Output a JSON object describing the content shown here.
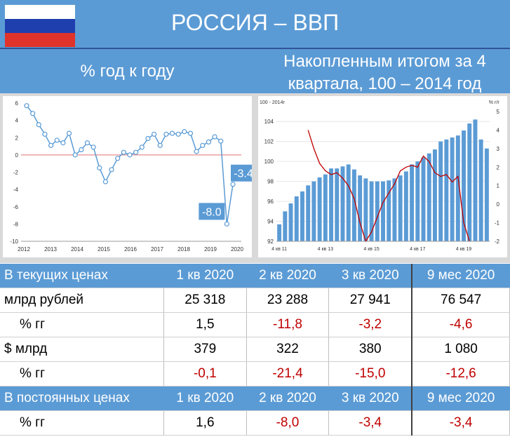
{
  "header": {
    "title": "РОССИЯ – ВВП",
    "subtitle_left": "% год к году",
    "subtitle_right_line1": "Накопленным итогом за 4",
    "subtitle_right_line2": "квартала, 100 – 2014 год"
  },
  "colors": {
    "accent": "#5b9bd5",
    "line": "#5b9bd5",
    "negative": "#c00000",
    "bar": "#5b9bd5",
    "line2": "#c00000"
  },
  "chart_data": [
    {
      "type": "line",
      "x_ticks": [
        "2012",
        "2013",
        "2014",
        "2015",
        "2016",
        "2017",
        "2018",
        "2019",
        "2020"
      ],
      "y_ticks": [
        "6",
        "4",
        "2",
        "0",
        "-2",
        "-4",
        "-6",
        "-8",
        "-10"
      ],
      "ylim": [
        -10,
        6
      ],
      "series": [
        {
          "values": [
            5.7,
            4.8,
            3.5,
            2.4,
            1.1,
            1.7,
            1.4,
            2.5,
            0.0,
            0.6,
            1.4,
            0.9,
            -1.5,
            -3.1,
            -1.7,
            -0.4,
            0.3,
            0.0,
            0.3,
            0.9,
            1.9,
            2.4,
            1.1,
            2.4,
            2.5,
            2.4,
            2.7,
            2.5,
            0.4,
            1.1,
            1.5,
            2.1,
            1.6,
            -8.0,
            -3.4
          ]
        }
      ],
      "annotations": [
        "-3.4",
        "-8.0"
      ]
    },
    {
      "type": "bar",
      "left_label": "100 - 2014г",
      "right_label": "% г/г",
      "x_ticks": [
        "4 кв 11",
        "4 кв 13",
        "4 кв 15",
        "4 кв 17",
        "4 кв 19"
      ],
      "y_ticks": [
        "104",
        "102",
        "100",
        "98",
        "96",
        "94",
        "92"
      ],
      "y2_ticks": [
        "5",
        "4",
        "3",
        "2",
        "1",
        "0",
        "-1",
        "-2"
      ],
      "ylim": [
        92,
        105
      ],
      "y2lim": [
        -2,
        5
      ],
      "bars": [
        93.7,
        95.0,
        95.8,
        96.5,
        97.0,
        97.6,
        98.0,
        98.4,
        98.7,
        99.3,
        99.3,
        99.5,
        99.7,
        99.2,
        98.6,
        98.3,
        98.0,
        98.0,
        98.0,
        98.1,
        98.3,
        98.6,
        99.0,
        99.7,
        100.0,
        100.4,
        100.8,
        101.2,
        102.0,
        102.2,
        102.4,
        102.6,
        103.1,
        103.8,
        104.2,
        102.2,
        101.3
      ],
      "line_series": {
        "start_index": 5,
        "values": [
          4.0,
          3.0,
          2.2,
          1.8,
          1.6,
          1.7,
          1.4,
          1.0,
          0.3,
          -1.0,
          -2.0,
          -1.5,
          -0.7,
          0.1,
          0.6,
          1.1,
          1.8,
          2.0,
          2.1,
          2.0,
          2.6,
          2.3,
          1.7,
          1.5,
          1.6,
          1.2,
          1.5,
          -1.0,
          -2.0
        ]
      }
    }
  ],
  "table": {
    "rows": [
      {
        "type": "header",
        "cells": [
          "В текущих ценах",
          "1 кв 2020",
          "2 кв 2020",
          "3 кв 2020",
          "9 мес 2020"
        ]
      },
      {
        "type": "data",
        "cells": [
          "млрд рублей",
          "25 318",
          "23 288",
          "27 941",
          "76 547"
        ]
      },
      {
        "type": "pct",
        "cells": [
          "% гг",
          "1,5",
          "-11,8",
          "-3,2",
          "-4,6"
        ]
      },
      {
        "type": "data",
        "cells": [
          "$ млрд",
          "379",
          "322",
          "380",
          "1 080"
        ]
      },
      {
        "type": "pct",
        "cells": [
          "% гг",
          "-0,1",
          "-21,4",
          "-15,0",
          "-12,6"
        ]
      },
      {
        "type": "header",
        "cells": [
          "В постоянных ценах",
          "1 кв 2020",
          "2 кв 2020",
          "3 кв 2020",
          "9 мес 2020"
        ]
      },
      {
        "type": "pct",
        "cells": [
          "% гг",
          "1,6",
          "-8,0",
          "-3,4",
          "-3,4"
        ]
      }
    ]
  }
}
